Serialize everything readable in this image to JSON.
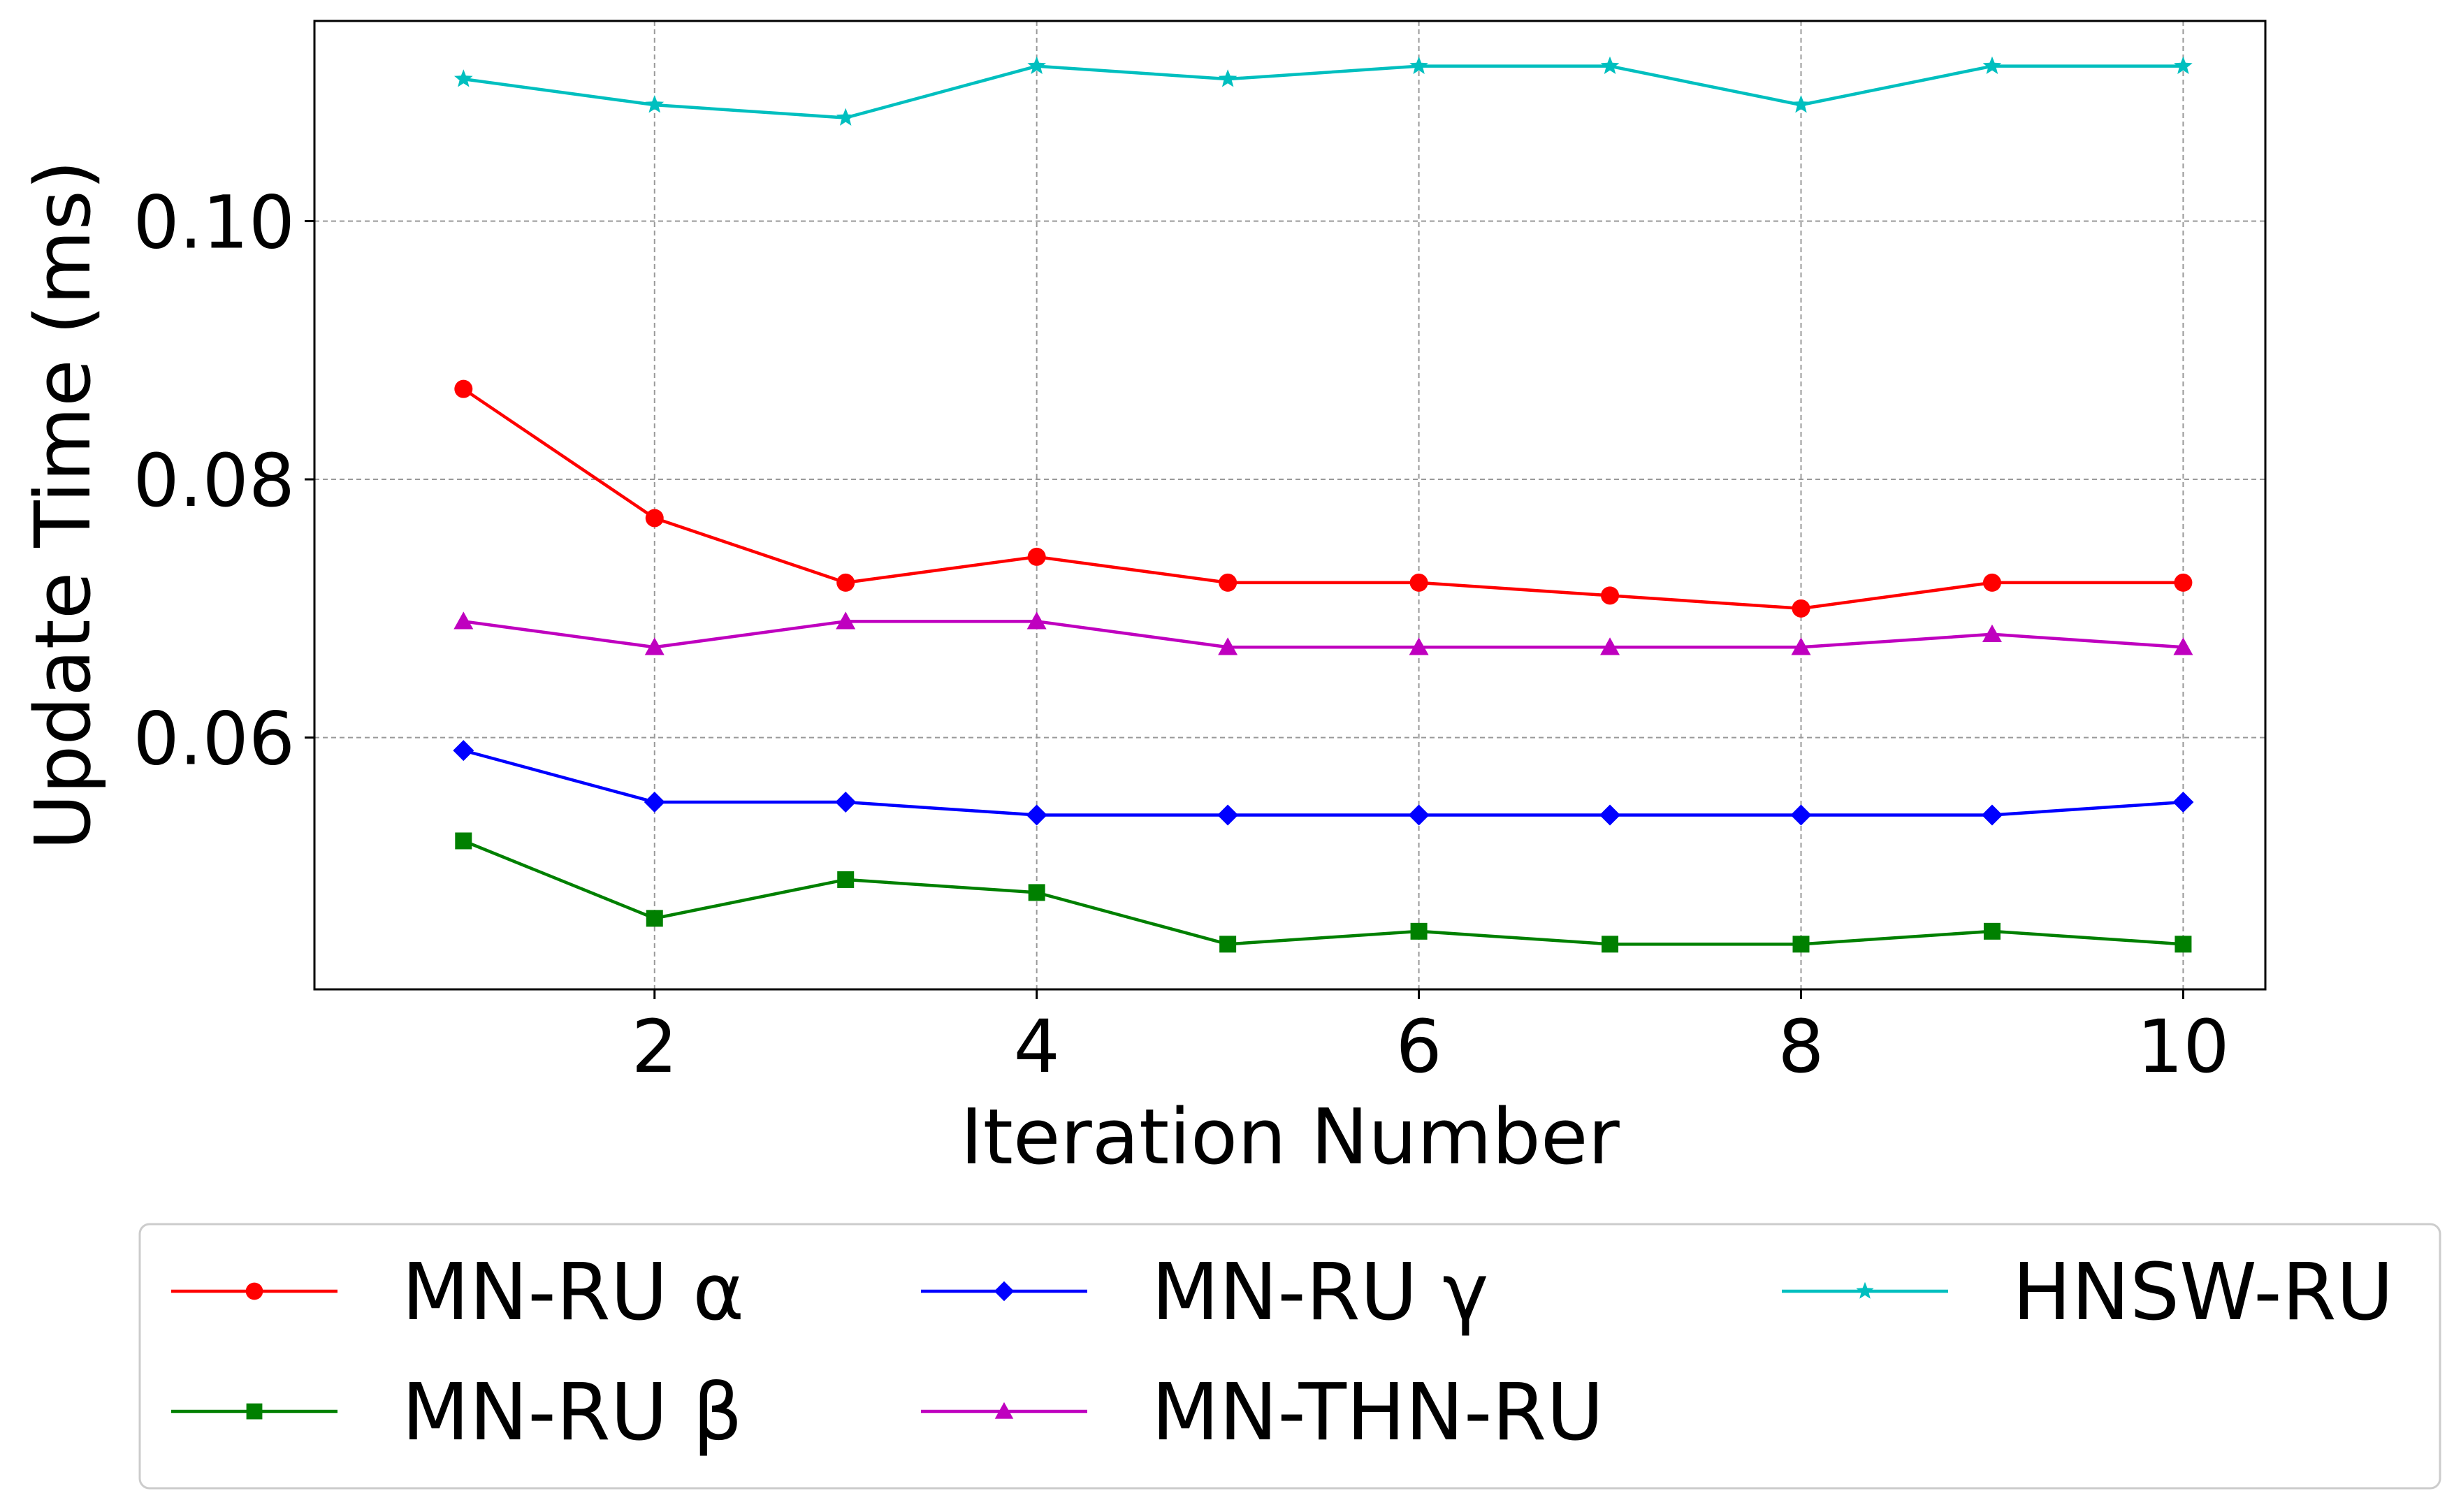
{
  "chart_data": {
    "type": "line",
    "title": "",
    "xlabel": "Iteration Number",
    "ylabel": "Update Time (ms)",
    "xlim": [
      0.22,
      10.43
    ],
    "ylim": [
      0.0405,
      0.1155
    ],
    "xticks": [
      2,
      4,
      6,
      8,
      10
    ],
    "yticks": [
      0.06,
      0.08,
      0.1
    ],
    "ytick_labels": [
      "0.06",
      "0.08",
      "0.10"
    ],
    "grid": true,
    "legend_placement": "below",
    "x": [
      1,
      2,
      3,
      4,
      5,
      6,
      7,
      8,
      9,
      10
    ],
    "series": [
      {
        "name": "MN-RU α",
        "color": "#ff0000",
        "marker": "circle",
        "values": [
          0.087,
          0.077,
          0.072,
          0.074,
          0.072,
          0.072,
          0.071,
          0.07,
          0.072,
          0.072
        ]
      },
      {
        "name": "MN-RU β",
        "color": "#008000",
        "marker": "square",
        "values": [
          0.052,
          0.046,
          0.049,
          0.048,
          0.044,
          0.045,
          0.044,
          0.044,
          0.045,
          0.044
        ]
      },
      {
        "name": "MN-RU γ",
        "color": "#0000ff",
        "marker": "diamond",
        "values": [
          0.059,
          0.055,
          0.055,
          0.054,
          0.054,
          0.054,
          0.054,
          0.054,
          0.054,
          0.055
        ]
      },
      {
        "name": "MN-THN-RU",
        "color": "#bf00bf",
        "marker": "triangle",
        "values": [
          0.069,
          0.067,
          0.069,
          0.069,
          0.067,
          0.067,
          0.067,
          0.067,
          0.068,
          0.067
        ]
      },
      {
        "name": "HNSW-RU",
        "color": "#00bfbf",
        "marker": "star",
        "values": [
          0.111,
          0.109,
          0.108,
          0.112,
          0.111,
          0.112,
          0.112,
          0.109,
          0.112,
          0.112
        ]
      }
    ]
  }
}
